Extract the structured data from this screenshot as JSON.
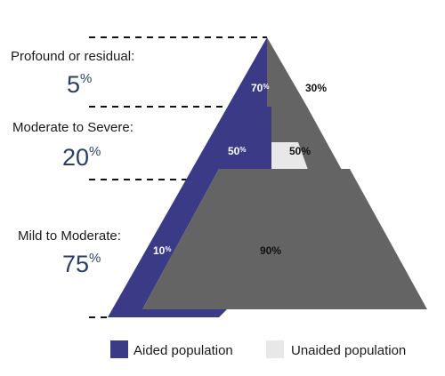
{
  "levels": [
    {
      "label": "Profound or residual:",
      "population_value": "5",
      "population_symbol": "%",
      "aided_value": "70",
      "aided_symbol": "%",
      "unaided_label": "30%"
    },
    {
      "label": "Moderate to Severe:",
      "population_value": "20",
      "population_symbol": "%",
      "aided_value": "50",
      "aided_symbol": "%",
      "unaided_label": "50%"
    },
    {
      "label": "Mild to Moderate:",
      "population_value": "75",
      "population_symbol": "%",
      "aided_value": "10",
      "aided_symbol": "%",
      "unaided_label": "90%"
    }
  ],
  "legend": [
    {
      "label": "Aided population",
      "color": "#3a3a87"
    },
    {
      "label": "Unaided population",
      "color": "#e8e8e8"
    }
  ],
  "colors": {
    "aided": "#3a3a87",
    "unaided_dark": "#646464",
    "unaided_light": "#e8e8e8",
    "dash": "#111111"
  }
}
